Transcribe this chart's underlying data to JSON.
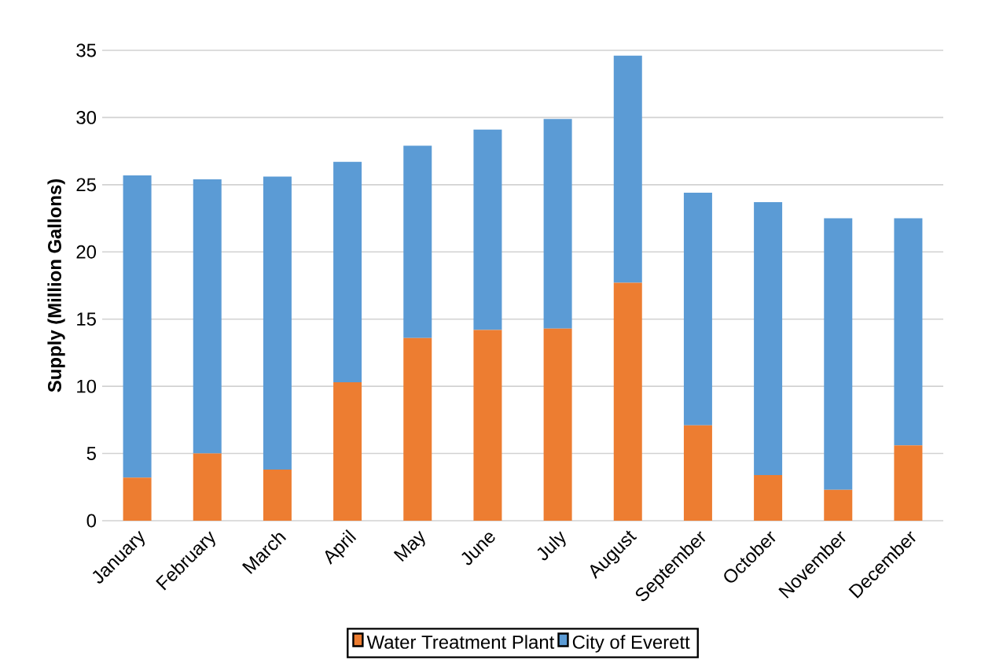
{
  "chart_data": {
    "type": "bar",
    "stacked": true,
    "ylabel": "Supply (Million Gallons)",
    "categories": [
      "January",
      "February",
      "March",
      "April",
      "May",
      "June",
      "July",
      "August",
      "September",
      "October",
      "November",
      "December"
    ],
    "series": [
      {
        "name": "Water Treatment Plant",
        "color": "#ed7d31",
        "values": [
          3.2,
          5.0,
          3.8,
          10.3,
          13.6,
          14.2,
          14.3,
          17.7,
          7.1,
          3.4,
          2.3,
          5.6
        ]
      },
      {
        "name": "City of Everett",
        "color": "#5b9bd5",
        "values": [
          22.5,
          20.4,
          21.8,
          16.4,
          14.3,
          14.9,
          15.6,
          16.9,
          17.3,
          20.3,
          20.2,
          16.9
        ]
      }
    ],
    "ylim": [
      0,
      35
    ],
    "yticks": [
      0,
      5,
      10,
      15,
      20,
      25,
      30,
      35
    ],
    "grid": "y",
    "legend": "bottom"
  }
}
